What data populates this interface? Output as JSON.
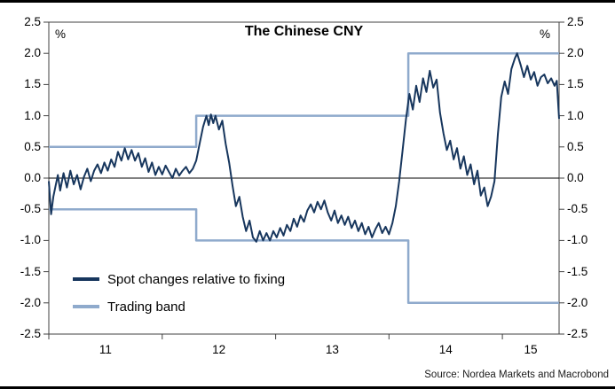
{
  "title": "The Chinese CNY",
  "percent_left": "%",
  "percent_right": "%",
  "source": "Source: Nordea Markets and Macrobond",
  "legend": {
    "items": [
      {
        "label": "Spot changes relative to fixing",
        "color": "#17365D"
      },
      {
        "label": "Trading band",
        "color": "#8FAACC"
      }
    ]
  },
  "colors": {
    "spot_line": "#17365D",
    "band_line": "#8FAACC",
    "frame": "#404040",
    "zero_line": "#000000",
    "background": "#FFFFFF"
  },
  "chart_data": {
    "type": "line",
    "title": "The Chinese CNY",
    "xlabel": "",
    "ylabel": "%",
    "ylim": [
      -2.5,
      2.5
    ],
    "xlim": [
      2011.0,
      2015.5
    ],
    "grid": false,
    "legend_position": "bottom-left-inside",
    "frame_color": "#404040",
    "y_ticks": [
      "2.5",
      "2.0",
      "1.5",
      "1.0",
      "0.5",
      "0.0",
      "-0.5",
      "-1.0",
      "-1.5",
      "-2.0",
      "-2.5"
    ],
    "x_ticks": [
      {
        "label": "11",
        "x": 2011.5
      },
      {
        "label": "12",
        "x": 2012.5
      },
      {
        "label": "13",
        "x": 2013.5
      },
      {
        "label": "14",
        "x": 2014.5
      },
      {
        "label": "15",
        "x": 2015.25
      }
    ],
    "x_tick_marks": [
      2011,
      2012,
      2013,
      2014,
      2015
    ],
    "annotations": [
      "%",
      "%"
    ],
    "series": [
      {
        "name": "Spot changes relative to fixing",
        "color": "#17365D",
        "width": 2,
        "points": [
          [
            2011.0,
            -0.05
          ],
          [
            2011.02,
            -0.58
          ],
          [
            2011.04,
            -0.3
          ],
          [
            2011.06,
            -0.12
          ],
          [
            2011.08,
            0.05
          ],
          [
            2011.1,
            -0.2
          ],
          [
            2011.13,
            0.08
          ],
          [
            2011.16,
            -0.15
          ],
          [
            2011.19,
            0.12
          ],
          [
            2011.22,
            -0.1
          ],
          [
            2011.25,
            0.05
          ],
          [
            2011.28,
            -0.18
          ],
          [
            2011.31,
            0.02
          ],
          [
            2011.34,
            0.15
          ],
          [
            2011.37,
            -0.05
          ],
          [
            2011.4,
            0.12
          ],
          [
            2011.43,
            0.22
          ],
          [
            2011.46,
            0.08
          ],
          [
            2011.49,
            0.25
          ],
          [
            2011.52,
            0.12
          ],
          [
            2011.55,
            0.3
          ],
          [
            2011.58,
            0.18
          ],
          [
            2011.61,
            0.42
          ],
          [
            2011.64,
            0.28
          ],
          [
            2011.67,
            0.48
          ],
          [
            2011.7,
            0.3
          ],
          [
            2011.73,
            0.45
          ],
          [
            2011.76,
            0.28
          ],
          [
            2011.79,
            0.4
          ],
          [
            2011.82,
            0.18
          ],
          [
            2011.85,
            0.32
          ],
          [
            2011.88,
            0.1
          ],
          [
            2011.91,
            0.25
          ],
          [
            2011.94,
            0.05
          ],
          [
            2011.97,
            0.18
          ],
          [
            2012.0,
            0.06
          ],
          [
            2012.03,
            0.2
          ],
          [
            2012.06,
            0.1
          ],
          [
            2012.09,
            0.0
          ],
          [
            2012.12,
            0.15
          ],
          [
            2012.15,
            0.04
          ],
          [
            2012.18,
            0.12
          ],
          [
            2012.21,
            0.18
          ],
          [
            2012.24,
            0.08
          ],
          [
            2012.27,
            0.15
          ],
          [
            2012.3,
            0.28
          ],
          [
            2012.33,
            0.55
          ],
          [
            2012.36,
            0.82
          ],
          [
            2012.39,
            1.0
          ],
          [
            2012.41,
            0.85
          ],
          [
            2012.43,
            1.02
          ],
          [
            2012.45,
            0.88
          ],
          [
            2012.47,
            1.0
          ],
          [
            2012.5,
            0.78
          ],
          [
            2012.53,
            0.92
          ],
          [
            2012.56,
            0.55
          ],
          [
            2012.59,
            0.25
          ],
          [
            2012.62,
            -0.12
          ],
          [
            2012.65,
            -0.45
          ],
          [
            2012.68,
            -0.3
          ],
          [
            2012.71,
            -0.62
          ],
          [
            2012.74,
            -0.85
          ],
          [
            2012.77,
            -0.68
          ],
          [
            2012.8,
            -0.95
          ],
          [
            2012.83,
            -1.02
          ],
          [
            2012.86,
            -0.85
          ],
          [
            2012.89,
            -1.0
          ],
          [
            2012.92,
            -0.88
          ],
          [
            2012.95,
            -1.0
          ],
          [
            2012.98,
            -0.85
          ],
          [
            2013.01,
            -0.95
          ],
          [
            2013.04,
            -0.8
          ],
          [
            2013.07,
            -0.92
          ],
          [
            2013.1,
            -0.75
          ],
          [
            2013.13,
            -0.85
          ],
          [
            2013.16,
            -0.65
          ],
          [
            2013.19,
            -0.78
          ],
          [
            2013.22,
            -0.6
          ],
          [
            2013.25,
            -0.7
          ],
          [
            2013.28,
            -0.52
          ],
          [
            2013.31,
            -0.42
          ],
          [
            2013.34,
            -0.55
          ],
          [
            2013.37,
            -0.38
          ],
          [
            2013.4,
            -0.5
          ],
          [
            2013.43,
            -0.36
          ],
          [
            2013.46,
            -0.55
          ],
          [
            2013.49,
            -0.68
          ],
          [
            2013.52,
            -0.52
          ],
          [
            2013.55,
            -0.72
          ],
          [
            2013.58,
            -0.6
          ],
          [
            2013.61,
            -0.75
          ],
          [
            2013.64,
            -0.62
          ],
          [
            2013.67,
            -0.8
          ],
          [
            2013.7,
            -0.68
          ],
          [
            2013.73,
            -0.85
          ],
          [
            2013.76,
            -0.72
          ],
          [
            2013.79,
            -0.9
          ],
          [
            2013.82,
            -0.78
          ],
          [
            2013.85,
            -0.95
          ],
          [
            2013.88,
            -0.82
          ],
          [
            2013.91,
            -0.72
          ],
          [
            2013.94,
            -0.88
          ],
          [
            2013.97,
            -0.78
          ],
          [
            2014.0,
            -0.9
          ],
          [
            2014.03,
            -0.72
          ],
          [
            2014.06,
            -0.45
          ],
          [
            2014.09,
            -0.05
          ],
          [
            2014.12,
            0.45
          ],
          [
            2014.15,
            0.95
          ],
          [
            2014.18,
            1.35
          ],
          [
            2014.21,
            1.1
          ],
          [
            2014.24,
            1.48
          ],
          [
            2014.27,
            1.22
          ],
          [
            2014.3,
            1.6
          ],
          [
            2014.33,
            1.38
          ],
          [
            2014.36,
            1.72
          ],
          [
            2014.39,
            1.45
          ],
          [
            2014.42,
            1.58
          ],
          [
            2014.45,
            1.05
          ],
          [
            2014.48,
            0.72
          ],
          [
            2014.51,
            0.45
          ],
          [
            2014.54,
            0.6
          ],
          [
            2014.57,
            0.3
          ],
          [
            2014.6,
            0.48
          ],
          [
            2014.63,
            0.15
          ],
          [
            2014.66,
            0.35
          ],
          [
            2014.69,
            0.05
          ],
          [
            2014.72,
            0.22
          ],
          [
            2014.75,
            -0.1
          ],
          [
            2014.78,
            0.12
          ],
          [
            2014.81,
            -0.28
          ],
          [
            2014.84,
            -0.15
          ],
          [
            2014.87,
            -0.45
          ],
          [
            2014.9,
            -0.3
          ],
          [
            2014.93,
            -0.05
          ],
          [
            2014.96,
            0.7
          ],
          [
            2014.99,
            1.3
          ],
          [
            2015.02,
            1.55
          ],
          [
            2015.05,
            1.35
          ],
          [
            2015.08,
            1.75
          ],
          [
            2015.11,
            1.92
          ],
          [
            2015.13,
            2.0
          ],
          [
            2015.16,
            1.82
          ],
          [
            2015.19,
            1.62
          ],
          [
            2015.22,
            1.8
          ],
          [
            2015.25,
            1.58
          ],
          [
            2015.28,
            1.7
          ],
          [
            2015.31,
            1.48
          ],
          [
            2015.34,
            1.62
          ],
          [
            2015.37,
            1.66
          ],
          [
            2015.4,
            1.52
          ],
          [
            2015.43,
            1.6
          ],
          [
            2015.46,
            1.48
          ],
          [
            2015.48,
            1.56
          ],
          [
            2015.5,
            0.95
          ]
        ]
      },
      {
        "name": "Trading band (upper)",
        "color": "#8FAACC",
        "width": 2.5,
        "points": [
          [
            2011.0,
            0.5
          ],
          [
            2012.3,
            0.5
          ],
          [
            2012.3,
            1.0
          ],
          [
            2014.17,
            1.0
          ],
          [
            2014.17,
            2.0
          ],
          [
            2015.5,
            2.0
          ]
        ]
      },
      {
        "name": "Trading band (lower)",
        "color": "#8FAACC",
        "width": 2.5,
        "points": [
          [
            2011.0,
            -0.5
          ],
          [
            2012.3,
            -0.5
          ],
          [
            2012.3,
            -1.0
          ],
          [
            2014.17,
            -1.0
          ],
          [
            2014.17,
            -2.0
          ],
          [
            2015.5,
            -2.0
          ]
        ]
      }
    ]
  }
}
